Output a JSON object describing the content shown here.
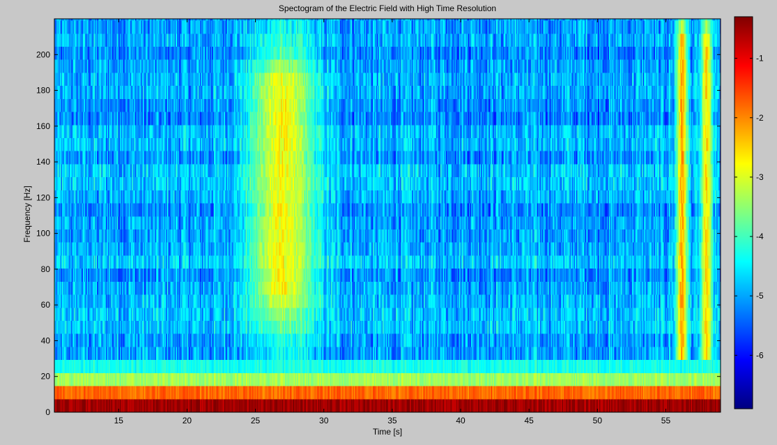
{
  "chart_data": {
    "type": "heatmap",
    "title": "Spectogram of the Electric Field with High Time Resolution",
    "xlabel": "Time [s]",
    "ylabel": "Frequency [Hz]",
    "xlim": [
      10.3,
      59.0
    ],
    "ylim": [
      0,
      220
    ],
    "x_ticks": [
      15,
      20,
      25,
      30,
      35,
      40,
      45,
      50,
      55
    ],
    "y_ticks": [
      0,
      20,
      40,
      60,
      80,
      100,
      120,
      140,
      160,
      180,
      200
    ],
    "colorbar": {
      "range": [
        -6.9,
        -0.3
      ],
      "ticks": [
        -6,
        -5,
        -4,
        -3,
        -2,
        -1
      ],
      "colormap": "jet"
    },
    "frequency_bin_hz": 7.3,
    "time_bin_s": 0.08,
    "background_level": -5.0,
    "low_frequency_bands": [
      {
        "freq_range": [
          0,
          7.3
        ],
        "value": -0.5
      },
      {
        "freq_range": [
          7.3,
          14.6
        ],
        "value": -1.8
      },
      {
        "freq_range": [
          14.6,
          21.9
        ],
        "value": -3.4
      },
      {
        "freq_range": [
          21.9,
          29.2
        ],
        "value": -4.3
      }
    ],
    "features": [
      {
        "time_center": 27.0,
        "time_width": 3.0,
        "freq_range": [
          65,
          185
        ],
        "peak_value": -2.8,
        "description": "broadband burst"
      },
      {
        "time_center": 56.2,
        "time_width": 0.5,
        "freq_range": [
          30,
          205
        ],
        "peak_value": -2.2,
        "description": "narrow emission line"
      },
      {
        "time_center": 58.0,
        "time_width": 0.5,
        "freq_range": [
          30,
          205
        ],
        "peak_value": -2.6,
        "description": "narrow emission line"
      }
    ]
  }
}
